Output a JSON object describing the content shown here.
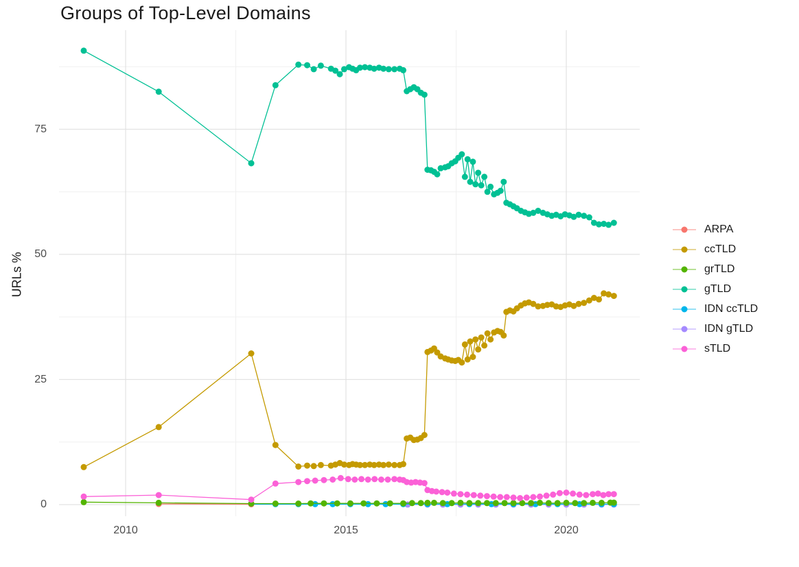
{
  "chart_data": {
    "type": "line",
    "title": "Groups of Top-Level Domains",
    "xlabel": "",
    "ylabel": "URLs %",
    "xlim": [
      2008.7,
      2021.7
    ],
    "ylim": [
      0,
      94
    ],
    "grid": "major+minor",
    "legend_position": "right",
    "background": "#ffffff",
    "grid_major_color": "#e2e2e2",
    "grid_minor_color": "#f0f0f0",
    "x_ticks": {
      "major": [
        2010,
        2015,
        2020
      ],
      "minor": [
        2012.5,
        2017.5
      ],
      "labels": [
        "2010",
        "2015",
        "2020"
      ]
    },
    "y_ticks": {
      "major": [
        0,
        25,
        50,
        75
      ],
      "minor": [
        12.5,
        37.5,
        62.5,
        87.5
      ],
      "labels": [
        "0",
        "25",
        "50",
        "75"
      ]
    },
    "draw_order": [
      5,
      4,
      0,
      2,
      6,
      1,
      3
    ],
    "series": [
      {
        "name": "ARPA",
        "color": "#F8766D",
        "points": [
          [
            2010.75,
            0.12
          ],
          [
            2012.85,
            0.08
          ]
        ]
      },
      {
        "name": "ccTLD",
        "color": "#C49A00",
        "points": [
          [
            2009.05,
            7.5
          ],
          [
            2010.75,
            15.5
          ],
          [
            2012.85,
            30.2
          ],
          [
            2013.4,
            11.9
          ],
          [
            2013.92,
            7.6
          ],
          [
            2014.12,
            7.8
          ],
          [
            2014.27,
            7.7
          ],
          [
            2014.43,
            7.9
          ],
          [
            2014.66,
            7.8
          ],
          [
            2014.76,
            8.0
          ],
          [
            2014.86,
            8.3
          ],
          [
            2014.96,
            8.0
          ],
          [
            2015.07,
            7.9
          ],
          [
            2015.15,
            8.1
          ],
          [
            2015.23,
            8.0
          ],
          [
            2015.32,
            7.9
          ],
          [
            2015.43,
            7.9
          ],
          [
            2015.54,
            8.0
          ],
          [
            2015.64,
            7.9
          ],
          [
            2015.75,
            8.0
          ],
          [
            2015.85,
            7.9
          ],
          [
            2015.97,
            8.0
          ],
          [
            2016.1,
            7.9
          ],
          [
            2016.22,
            7.9
          ],
          [
            2016.3,
            8.1
          ],
          [
            2016.38,
            13.2
          ],
          [
            2016.46,
            13.4
          ],
          [
            2016.54,
            12.9
          ],
          [
            2016.62,
            13.0
          ],
          [
            2016.7,
            13.3
          ],
          [
            2016.78,
            13.9
          ],
          [
            2016.85,
            30.5
          ],
          [
            2016.93,
            30.8
          ],
          [
            2017.0,
            31.2
          ],
          [
            2017.07,
            30.4
          ],
          [
            2017.15,
            29.6
          ],
          [
            2017.25,
            29.2
          ],
          [
            2017.32,
            29.0
          ],
          [
            2017.4,
            28.8
          ],
          [
            2017.48,
            28.7
          ],
          [
            2017.55,
            28.9
          ],
          [
            2017.63,
            28.4
          ],
          [
            2017.7,
            32.0
          ],
          [
            2017.76,
            29.0
          ],
          [
            2017.82,
            32.6
          ],
          [
            2017.88,
            29.5
          ],
          [
            2017.94,
            33.0
          ],
          [
            2018.0,
            31.0
          ],
          [
            2018.07,
            33.4
          ],
          [
            2018.14,
            31.8
          ],
          [
            2018.21,
            34.2
          ],
          [
            2018.28,
            33.0
          ],
          [
            2018.36,
            34.4
          ],
          [
            2018.44,
            34.7
          ],
          [
            2018.51,
            34.5
          ],
          [
            2018.58,
            33.8
          ],
          [
            2018.64,
            38.5
          ],
          [
            2018.72,
            38.8
          ],
          [
            2018.8,
            38.6
          ],
          [
            2018.88,
            39.2
          ],
          [
            2018.97,
            39.8
          ],
          [
            2019.06,
            40.2
          ],
          [
            2019.15,
            40.4
          ],
          [
            2019.25,
            40.1
          ],
          [
            2019.36,
            39.6
          ],
          [
            2019.47,
            39.7
          ],
          [
            2019.57,
            39.9
          ],
          [
            2019.67,
            40.0
          ],
          [
            2019.77,
            39.6
          ],
          [
            2019.87,
            39.5
          ],
          [
            2019.97,
            39.8
          ],
          [
            2020.07,
            40.0
          ],
          [
            2020.17,
            39.7
          ],
          [
            2020.28,
            40.1
          ],
          [
            2020.4,
            40.3
          ],
          [
            2020.52,
            40.8
          ],
          [
            2020.63,
            41.3
          ],
          [
            2020.74,
            41.0
          ],
          [
            2020.85,
            42.2
          ],
          [
            2020.96,
            42.0
          ],
          [
            2021.08,
            41.7
          ]
        ]
      },
      {
        "name": "grTLD",
        "color": "#53B400",
        "points": [
          [
            2009.05,
            0.5
          ],
          [
            2010.75,
            0.35
          ],
          [
            2012.85,
            0.2
          ],
          [
            2013.4,
            0.2
          ],
          [
            2013.92,
            0.2
          ],
          [
            2014.2,
            0.25
          ],
          [
            2014.5,
            0.25
          ],
          [
            2014.8,
            0.25
          ],
          [
            2015.1,
            0.25
          ],
          [
            2015.4,
            0.25
          ],
          [
            2015.7,
            0.25
          ],
          [
            2016.0,
            0.25
          ],
          [
            2016.3,
            0.25
          ],
          [
            2016.5,
            0.3
          ],
          [
            2016.7,
            0.3
          ],
          [
            2016.85,
            0.35
          ],
          [
            2017.0,
            0.35
          ],
          [
            2017.2,
            0.3
          ],
          [
            2017.4,
            0.3
          ],
          [
            2017.6,
            0.35
          ],
          [
            2017.8,
            0.3
          ],
          [
            2018.0,
            0.3
          ],
          [
            2018.2,
            0.3
          ],
          [
            2018.4,
            0.3
          ],
          [
            2018.6,
            0.3
          ],
          [
            2018.8,
            0.3
          ],
          [
            2019.0,
            0.3
          ],
          [
            2019.2,
            0.3
          ],
          [
            2019.4,
            0.35
          ],
          [
            2019.6,
            0.3
          ],
          [
            2019.8,
            0.3
          ],
          [
            2020.0,
            0.35
          ],
          [
            2020.2,
            0.3
          ],
          [
            2020.4,
            0.3
          ],
          [
            2020.6,
            0.35
          ],
          [
            2020.8,
            0.35
          ],
          [
            2021.0,
            0.4
          ],
          [
            2021.08,
            0.4
          ]
        ]
      },
      {
        "name": "gTLD",
        "color": "#00C094",
        "points": [
          [
            2009.05,
            90.7
          ],
          [
            2010.75,
            82.5
          ],
          [
            2012.85,
            68.2
          ],
          [
            2013.4,
            83.8
          ],
          [
            2013.92,
            87.9
          ],
          [
            2014.12,
            87.8
          ],
          [
            2014.27,
            87.0
          ],
          [
            2014.43,
            87.7
          ],
          [
            2014.66,
            87.1
          ],
          [
            2014.76,
            86.7
          ],
          [
            2014.86,
            86.0
          ],
          [
            2014.96,
            87.0
          ],
          [
            2015.07,
            87.4
          ],
          [
            2015.15,
            87.1
          ],
          [
            2015.23,
            86.8
          ],
          [
            2015.32,
            87.3
          ],
          [
            2015.43,
            87.4
          ],
          [
            2015.54,
            87.3
          ],
          [
            2015.64,
            87.1
          ],
          [
            2015.75,
            87.3
          ],
          [
            2015.85,
            87.1
          ],
          [
            2015.97,
            87.0
          ],
          [
            2016.1,
            87.0
          ],
          [
            2016.22,
            87.1
          ],
          [
            2016.3,
            86.8
          ],
          [
            2016.38,
            82.6
          ],
          [
            2016.46,
            83.0
          ],
          [
            2016.54,
            83.4
          ],
          [
            2016.62,
            83.0
          ],
          [
            2016.7,
            82.3
          ],
          [
            2016.78,
            81.9
          ],
          [
            2016.85,
            66.9
          ],
          [
            2016.93,
            66.8
          ],
          [
            2017.0,
            66.5
          ],
          [
            2017.07,
            66.0
          ],
          [
            2017.15,
            67.2
          ],
          [
            2017.25,
            67.4
          ],
          [
            2017.32,
            67.6
          ],
          [
            2017.4,
            68.2
          ],
          [
            2017.48,
            68.6
          ],
          [
            2017.55,
            69.3
          ],
          [
            2017.63,
            70.0
          ],
          [
            2017.7,
            65.5
          ],
          [
            2017.76,
            69.0
          ],
          [
            2017.82,
            64.5
          ],
          [
            2017.88,
            68.5
          ],
          [
            2017.94,
            64.0
          ],
          [
            2018.0,
            66.3
          ],
          [
            2018.07,
            63.8
          ],
          [
            2018.14,
            65.5
          ],
          [
            2018.21,
            62.5
          ],
          [
            2018.28,
            63.5
          ],
          [
            2018.36,
            62.0
          ],
          [
            2018.44,
            62.3
          ],
          [
            2018.51,
            62.7
          ],
          [
            2018.58,
            64.5
          ],
          [
            2018.64,
            60.3
          ],
          [
            2018.72,
            60.0
          ],
          [
            2018.8,
            59.6
          ],
          [
            2018.88,
            59.2
          ],
          [
            2018.97,
            58.7
          ],
          [
            2019.06,
            58.4
          ],
          [
            2019.15,
            58.1
          ],
          [
            2019.25,
            58.3
          ],
          [
            2019.36,
            58.7
          ],
          [
            2019.47,
            58.3
          ],
          [
            2019.57,
            58.0
          ],
          [
            2019.67,
            57.7
          ],
          [
            2019.77,
            57.9
          ],
          [
            2019.87,
            57.6
          ],
          [
            2019.97,
            58.0
          ],
          [
            2020.07,
            57.8
          ],
          [
            2020.17,
            57.5
          ],
          [
            2020.28,
            57.9
          ],
          [
            2020.4,
            57.7
          ],
          [
            2020.52,
            57.4
          ],
          [
            2020.63,
            56.3
          ],
          [
            2020.74,
            56.0
          ],
          [
            2020.85,
            56.1
          ],
          [
            2020.96,
            55.9
          ],
          [
            2021.08,
            56.3
          ]
        ]
      },
      {
        "name": "IDN ccTLD",
        "color": "#00B6EB",
        "points": [
          [
            2012.85,
            0.1
          ],
          [
            2013.4,
            0.1
          ],
          [
            2013.92,
            0.1
          ],
          [
            2014.3,
            0.1
          ],
          [
            2014.7,
            0.1
          ],
          [
            2015.1,
            0.1
          ],
          [
            2015.5,
            0.1
          ],
          [
            2015.9,
            0.1
          ],
          [
            2016.3,
            0.1
          ],
          [
            2016.85,
            0.1
          ],
          [
            2017.3,
            0.1
          ],
          [
            2017.8,
            0.1
          ],
          [
            2018.3,
            0.1
          ],
          [
            2018.8,
            0.1
          ],
          [
            2019.3,
            0.1
          ],
          [
            2019.8,
            0.1
          ],
          [
            2020.3,
            0.1
          ],
          [
            2020.8,
            0.1
          ],
          [
            2021.08,
            0.1
          ]
        ]
      },
      {
        "name": "IDN gTLD",
        "color": "#A58AFF",
        "points": [
          [
            2016.4,
            0.02
          ],
          [
            2016.85,
            0.02
          ],
          [
            2017.2,
            0.02
          ],
          [
            2017.6,
            0.02
          ],
          [
            2018.0,
            0.02
          ],
          [
            2018.4,
            0.02
          ],
          [
            2018.8,
            0.02
          ],
          [
            2019.2,
            0.02
          ],
          [
            2019.6,
            0.02
          ],
          [
            2020.0,
            0.02
          ],
          [
            2020.4,
            0.02
          ],
          [
            2020.8,
            0.02
          ],
          [
            2021.08,
            0.02
          ]
        ]
      },
      {
        "name": "sTLD",
        "color": "#FB61D7",
        "points": [
          [
            2009.05,
            1.6
          ],
          [
            2010.75,
            1.9
          ],
          [
            2012.85,
            1.0
          ],
          [
            2013.4,
            4.2
          ],
          [
            2013.92,
            4.5
          ],
          [
            2014.12,
            4.7
          ],
          [
            2014.3,
            4.8
          ],
          [
            2014.5,
            4.9
          ],
          [
            2014.7,
            5.0
          ],
          [
            2014.88,
            5.3
          ],
          [
            2015.05,
            5.1
          ],
          [
            2015.2,
            5.0
          ],
          [
            2015.35,
            5.1
          ],
          [
            2015.5,
            5.0
          ],
          [
            2015.65,
            5.1
          ],
          [
            2015.8,
            5.0
          ],
          [
            2015.95,
            5.0
          ],
          [
            2016.1,
            5.1
          ],
          [
            2016.22,
            5.0
          ],
          [
            2016.3,
            4.9
          ],
          [
            2016.38,
            4.5
          ],
          [
            2016.48,
            4.4
          ],
          [
            2016.58,
            4.5
          ],
          [
            2016.68,
            4.4
          ],
          [
            2016.78,
            4.3
          ],
          [
            2016.85,
            2.9
          ],
          [
            2016.95,
            2.7
          ],
          [
            2017.05,
            2.6
          ],
          [
            2017.18,
            2.5
          ],
          [
            2017.3,
            2.4
          ],
          [
            2017.45,
            2.2
          ],
          [
            2017.6,
            2.1
          ],
          [
            2017.75,
            2.0
          ],
          [
            2017.9,
            1.9
          ],
          [
            2018.05,
            1.8
          ],
          [
            2018.2,
            1.7
          ],
          [
            2018.35,
            1.6
          ],
          [
            2018.5,
            1.5
          ],
          [
            2018.65,
            1.5
          ],
          [
            2018.8,
            1.4
          ],
          [
            2018.95,
            1.3
          ],
          [
            2019.1,
            1.4
          ],
          [
            2019.25,
            1.5
          ],
          [
            2019.4,
            1.6
          ],
          [
            2019.55,
            1.8
          ],
          [
            2019.7,
            2.0
          ],
          [
            2019.85,
            2.3
          ],
          [
            2020.0,
            2.4
          ],
          [
            2020.15,
            2.2
          ],
          [
            2020.3,
            2.0
          ],
          [
            2020.45,
            1.9
          ],
          [
            2020.6,
            2.1
          ],
          [
            2020.72,
            2.2
          ],
          [
            2020.84,
            1.9
          ],
          [
            2020.96,
            2.1
          ],
          [
            2021.08,
            2.1
          ]
        ]
      }
    ]
  }
}
